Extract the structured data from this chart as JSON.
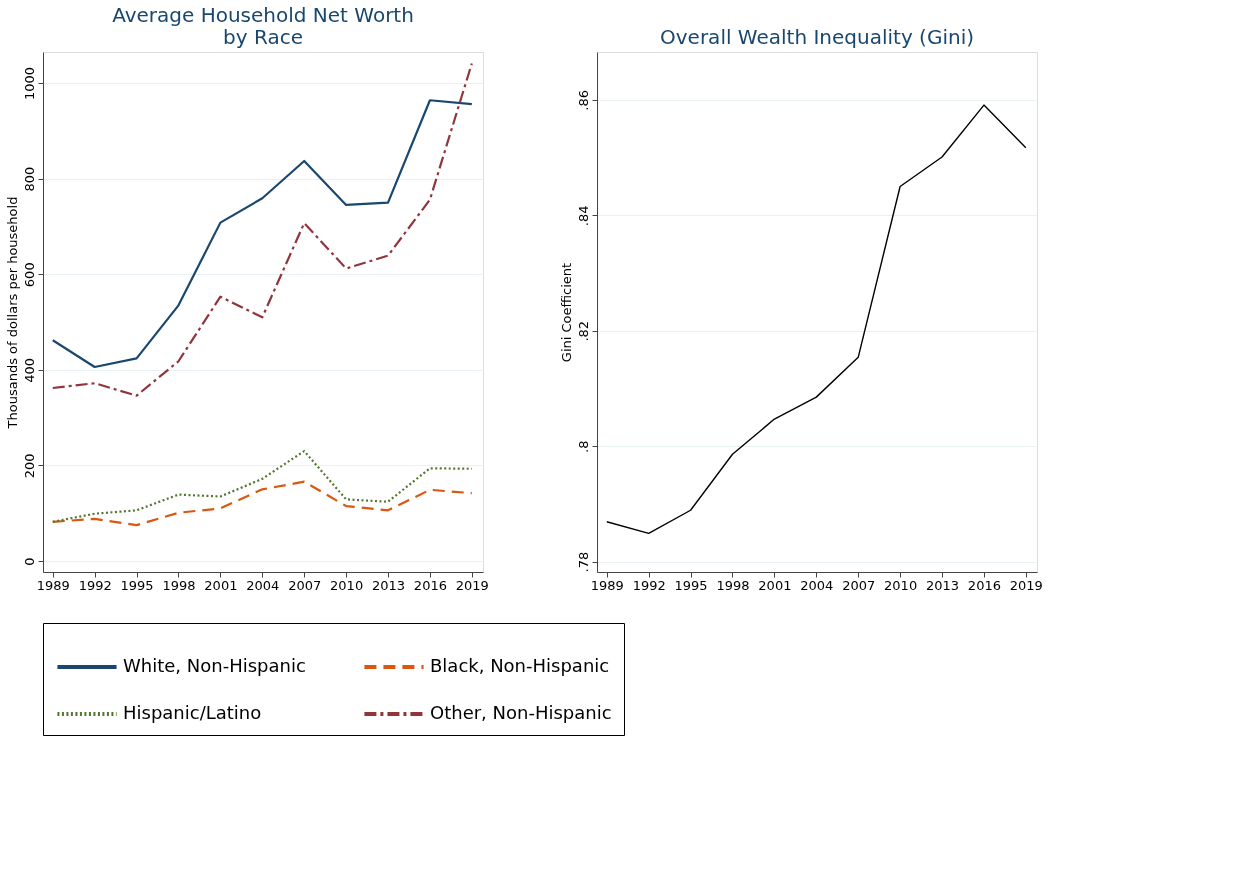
{
  "chart_data": [
    {
      "type": "line",
      "title": [
        "Average Household Net Worth",
        "by Race"
      ],
      "ylabel": "Thousands of dollars per household",
      "x": [
        1989,
        1992,
        1995,
        1998,
        2001,
        2004,
        2007,
        2010,
        2013,
        2016,
        2019
      ],
      "xlim": [
        1988.3,
        2019.8
      ],
      "xticks": [
        1989,
        1992,
        1995,
        1998,
        2001,
        2004,
        2007,
        2010,
        2013,
        2016,
        2019
      ],
      "ylim": [
        -23,
        1065
      ],
      "yticks": [
        0,
        200,
        400,
        600,
        800,
        {
          "value": 1000,
          "label": "1000"
        }
      ],
      "grid": "y",
      "legend": "bottom",
      "marker": "none",
      "series": [
        {
          "name": "White, Non-Hispanic",
          "color": "#1a476f",
          "line_style": "solid",
          "values": [
            462,
            406,
            424,
            535,
            708,
            759,
            837,
            745,
            750,
            964,
            956
          ]
        },
        {
          "name": "Black, Non-Hispanic",
          "color": "#d9570f",
          "line_style": "dashed",
          "values": [
            82,
            88,
            75,
            101,
            110,
            150,
            166,
            115,
            106,
            149,
            142
          ]
        },
        {
          "name": "Hispanic/Latino",
          "color": "#55752f",
          "line_style": "dotted",
          "values": [
            82,
            99,
            106,
            139,
            135,
            172,
            230,
            129,
            124,
            194,
            193
          ]
        },
        {
          "name": "Other, Non-Hispanic",
          "color": "#90353b",
          "line_style": "dashdot",
          "values": [
            362,
            372,
            346,
            418,
            553,
            510,
            707,
            612,
            639,
            756,
            1041
          ]
        }
      ]
    },
    {
      "type": "line",
      "title": "Overall Wealth Inequality (Gini)",
      "ylabel": "Gini Coefficient",
      "x": [
        1989,
        1992,
        1995,
        1998,
        2001,
        2004,
        2007,
        2010,
        2013,
        2016,
        2019
      ],
      "xlim": [
        1988.3,
        2019.8
      ],
      "xticks": [
        1989,
        1992,
        1995,
        1998,
        2001,
        2004,
        2007,
        2010,
        2013,
        2016,
        2019
      ],
      "ylim": [
        0.7782,
        0.8683
      ],
      "yticks": [
        {
          "value": 0.78,
          "label": ".78"
        },
        {
          "value": 0.8,
          "label": ".8"
        },
        {
          "value": 0.82,
          "label": ".82"
        },
        {
          "value": 0.84,
          "label": ".84"
        },
        {
          "value": 0.86,
          "label": ".86"
        }
      ],
      "grid": "y",
      "marker": "none",
      "series": [
        {
          "color": "#000000",
          "line_style": "solid",
          "values": [
            0.7869,
            0.7849,
            0.7889,
            0.7986,
            0.8047,
            0.8085,
            0.8154,
            0.845,
            0.8501,
            0.8591,
            0.8517
          ]
        }
      ]
    }
  ]
}
